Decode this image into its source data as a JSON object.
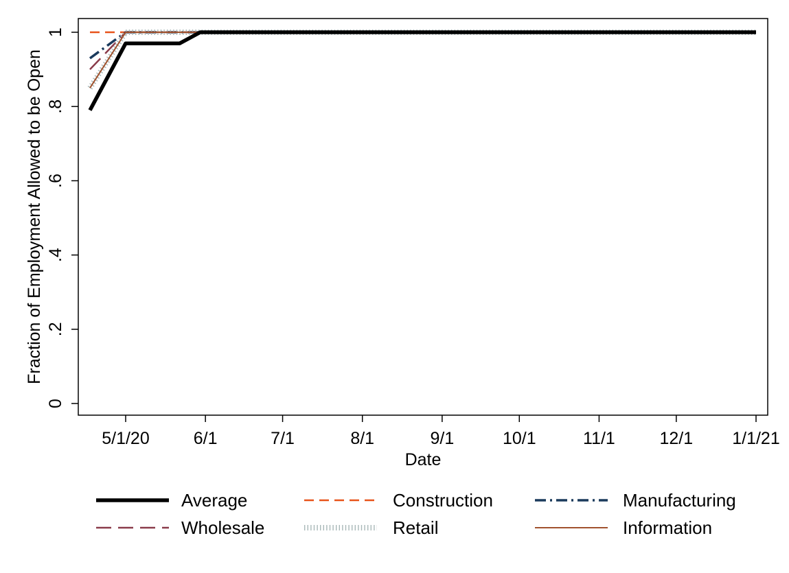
{
  "chart_data": {
    "type": "line",
    "title": "",
    "xlabel": "Date",
    "ylabel": "Fraction of Employment Allowed to be Open",
    "x_tick_labels": [
      "5/1/20",
      "6/1",
      "7/1",
      "8/1",
      "9/1",
      "10/1",
      "11/1",
      "12/1",
      "1/1/21"
    ],
    "x_tick_dates": [
      "2020-05-01",
      "2020-06-01",
      "2020-07-01",
      "2020-08-01",
      "2020-09-01",
      "2020-10-01",
      "2020-11-01",
      "2020-12-01",
      "2021-01-01"
    ],
    "y_tick_labels": [
      "0",
      ".2",
      ".4",
      ".6",
      ".8",
      "1"
    ],
    "y_tick_values": [
      0,
      0.2,
      0.4,
      0.6,
      0.8,
      1
    ],
    "xlim": [
      "2020-04-17",
      "2021-01-04"
    ],
    "ylim": [
      -0.03,
      1.02
    ],
    "grid": false,
    "legend_position": "bottom",
    "series": [
      {
        "name": "Average",
        "color": "#000000",
        "style": "solid-thick",
        "points": [
          [
            "2020-04-17",
            0.79
          ],
          [
            "2020-05-01",
            0.97
          ],
          [
            "2020-05-22",
            0.97
          ],
          [
            "2020-05-30",
            1.0
          ],
          [
            "2021-01-01",
            1.0
          ]
        ]
      },
      {
        "name": "Construction",
        "color": "#e8531a",
        "style": "dash",
        "points": [
          [
            "2020-04-17",
            1.0
          ],
          [
            "2021-01-01",
            1.0
          ]
        ]
      },
      {
        "name": "Manufacturing",
        "color": "#1a3a5c",
        "style": "dashdot",
        "points": [
          [
            "2020-04-17",
            0.93
          ],
          [
            "2020-05-01",
            1.0
          ],
          [
            "2021-01-01",
            1.0
          ]
        ]
      },
      {
        "name": "Wholesale",
        "color": "#8a3b4a",
        "style": "longdash",
        "points": [
          [
            "2020-04-17",
            0.9
          ],
          [
            "2020-05-01",
            1.0
          ],
          [
            "2021-01-01",
            1.0
          ]
        ]
      },
      {
        "name": "Retail",
        "color": "#a8b8b8",
        "style": "vbar",
        "points": [
          [
            "2020-04-17",
            0.85
          ],
          [
            "2020-05-01",
            1.0
          ],
          [
            "2021-01-01",
            1.0
          ]
        ]
      },
      {
        "name": "Information",
        "color": "#a0522d",
        "style": "solid-thin",
        "points": [
          [
            "2020-04-17",
            0.85
          ],
          [
            "2020-05-01",
            1.0
          ],
          [
            "2021-01-01",
            1.0
          ]
        ]
      }
    ]
  }
}
